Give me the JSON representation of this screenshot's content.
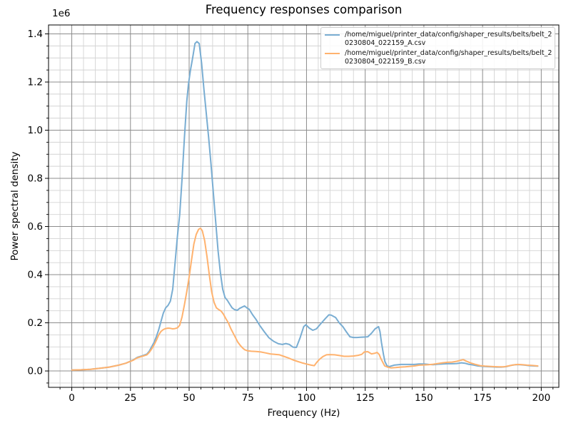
{
  "figure": {
    "background": "#ffffff"
  },
  "chart_data": {
    "type": "line",
    "title": "Frequency responses comparison",
    "xlabel": "Frequency (Hz)",
    "ylabel": "Power spectral density",
    "y_offset_label": "1e6",
    "grid": {
      "major_color": "#8c8c8c",
      "minor_color": "#d3d3d3",
      "major_on": true,
      "minor_on": true
    },
    "axes_colors": {
      "spine": "#000000",
      "tick": "#000000",
      "tick_label": "#000000"
    },
    "x_axis": {
      "min": -9.9,
      "max": 207.5,
      "major_ticks": [
        0,
        25,
        50,
        75,
        100,
        125,
        150,
        175,
        200
      ],
      "major_tick_labels": [
        "0",
        "25",
        "50",
        "75",
        "100",
        "125",
        "150",
        "175",
        "200"
      ],
      "minor_tick_step": 5
    },
    "y_axis": {
      "min": -0.068,
      "max": 1.437,
      "unit_multiplier": 1000000,
      "major_ticks": [
        0.0,
        0.2,
        0.4,
        0.6,
        0.8,
        1.0,
        1.2,
        1.4
      ],
      "major_tick_labels": [
        "0.0",
        "0.2",
        "0.4",
        "0.6",
        "0.8",
        "1.0",
        "1.2",
        "1.4"
      ],
      "minor_tick_step": 0.05
    },
    "legend": {
      "position": "upper-right",
      "entries": [
        {
          "label": "/home/miguel/printer_data/config/shaper_results/belts/belt_20230804_022159_A.csv",
          "lines": [
            "/home/miguel/printer_data/config/shaper_results/belts/belt_2",
            "0230804_022159_A.csv"
          ],
          "color": "#79add2"
        },
        {
          "label": "/home/miguel/printer_data/config/shaper_results/belts/belt_20230804_022159_B.csv",
          "lines": [
            "/home/miguel/printer_data/config/shaper_results/belts/belt_2",
            "0230804_022159_B.csv"
          ],
          "color": "#ffb26e"
        }
      ]
    },
    "series": [
      {
        "name": "belt_20230804_022159_A.csv",
        "color": "#79add2",
        "peak": {
          "frequency_hz": 53.3,
          "psd": 1368000
        },
        "points": [
          [
            0,
            0.004
          ],
          [
            4,
            0.005
          ],
          [
            8,
            0.007
          ],
          [
            12,
            0.011
          ],
          [
            16,
            0.016
          ],
          [
            20,
            0.024
          ],
          [
            23,
            0.032
          ],
          [
            26,
            0.045
          ],
          [
            28,
            0.057
          ],
          [
            30,
            0.063
          ],
          [
            32,
            0.07
          ],
          [
            33,
            0.082
          ],
          [
            34,
            0.1
          ],
          [
            35,
            0.118
          ],
          [
            36,
            0.142
          ],
          [
            37,
            0.17
          ],
          [
            38,
            0.205
          ],
          [
            39,
            0.24
          ],
          [
            40,
            0.262
          ],
          [
            41,
            0.272
          ],
          [
            42,
            0.29
          ],
          [
            43,
            0.34
          ],
          [
            44,
            0.45
          ],
          [
            45,
            0.56
          ],
          [
            46,
            0.65
          ],
          [
            47,
            0.8
          ],
          [
            48,
            0.97
          ],
          [
            49,
            1.12
          ],
          [
            49.7,
            1.19
          ],
          [
            50.5,
            1.245
          ],
          [
            51.5,
            1.3
          ],
          [
            52.5,
            1.36
          ],
          [
            53.3,
            1.368
          ],
          [
            54.3,
            1.36
          ],
          [
            55.3,
            1.28
          ],
          [
            56.3,
            1.17
          ],
          [
            57.3,
            1.07
          ],
          [
            58.3,
            0.97
          ],
          [
            59.3,
            0.86
          ],
          [
            60.3,
            0.74
          ],
          [
            61.3,
            0.62
          ],
          [
            62.3,
            0.5
          ],
          [
            63.3,
            0.41
          ],
          [
            64.3,
            0.34
          ],
          [
            65.3,
            0.305
          ],
          [
            66.3,
            0.293
          ],
          [
            67.3,
            0.277
          ],
          [
            68.3,
            0.262
          ],
          [
            69.3,
            0.255
          ],
          [
            70.5,
            0.252
          ],
          [
            71.5,
            0.26
          ],
          [
            72.7,
            0.266
          ],
          [
            73.6,
            0.27
          ],
          [
            74.6,
            0.262
          ],
          [
            75.6,
            0.256
          ],
          [
            77,
            0.234
          ],
          [
            78.5,
            0.214
          ],
          [
            80,
            0.19
          ],
          [
            82,
            0.163
          ],
          [
            84,
            0.138
          ],
          [
            86,
            0.123
          ],
          [
            88,
            0.113
          ],
          [
            89.7,
            0.11
          ],
          [
            91.2,
            0.114
          ],
          [
            92.7,
            0.11
          ],
          [
            94.2,
            0.099
          ],
          [
            95.7,
            0.098
          ],
          [
            97.3,
            0.139
          ],
          [
            98.8,
            0.184
          ],
          [
            99.7,
            0.192
          ],
          [
            101.2,
            0.178
          ],
          [
            102.7,
            0.169
          ],
          [
            104.2,
            0.175
          ],
          [
            105.8,
            0.193
          ],
          [
            107.9,
            0.216
          ],
          [
            109.5,
            0.233
          ],
          [
            110.5,
            0.232
          ],
          [
            112.4,
            0.222
          ],
          [
            113.9,
            0.2
          ],
          [
            115.5,
            0.184
          ],
          [
            117,
            0.162
          ],
          [
            118.5,
            0.142
          ],
          [
            120,
            0.139
          ],
          [
            121.5,
            0.139
          ],
          [
            123,
            0.14
          ],
          [
            124.5,
            0.141
          ],
          [
            126.1,
            0.142
          ],
          [
            127.7,
            0.157
          ],
          [
            129.2,
            0.175
          ],
          [
            130.7,
            0.184
          ],
          [
            131.3,
            0.163
          ],
          [
            131.9,
            0.119
          ],
          [
            132.8,
            0.068
          ],
          [
            133.4,
            0.039
          ],
          [
            134.3,
            0.021
          ],
          [
            135.2,
            0.018
          ],
          [
            137.3,
            0.024
          ],
          [
            140.3,
            0.027
          ],
          [
            143.4,
            0.027
          ],
          [
            146,
            0.027
          ],
          [
            148,
            0.029
          ],
          [
            150,
            0.029
          ],
          [
            152,
            0.027
          ],
          [
            154,
            0.026
          ],
          [
            156,
            0.028
          ],
          [
            158,
            0.029
          ],
          [
            160,
            0.03
          ],
          [
            162,
            0.03
          ],
          [
            164,
            0.031
          ],
          [
            166,
            0.034
          ],
          [
            167.5,
            0.032
          ],
          [
            169,
            0.028
          ],
          [
            171,
            0.025
          ],
          [
            173,
            0.021
          ],
          [
            175,
            0.019
          ],
          [
            177,
            0.018
          ],
          [
            179,
            0.017
          ],
          [
            181,
            0.016
          ],
          [
            183,
            0.016
          ],
          [
            185,
            0.018
          ],
          [
            187,
            0.023
          ],
          [
            189,
            0.026
          ],
          [
            191,
            0.026
          ],
          [
            193,
            0.024
          ],
          [
            195,
            0.022
          ],
          [
            197,
            0.021
          ],
          [
            198.5,
            0.02
          ]
        ]
      },
      {
        "name": "belt_20230804_022159_B.csv",
        "color": "#ffb26e",
        "peak": {
          "frequency_hz": 54.8,
          "psd": 593000
        },
        "points": [
          [
            0,
            0.004
          ],
          [
            4,
            0.005
          ],
          [
            8,
            0.007
          ],
          [
            12,
            0.011
          ],
          [
            16,
            0.016
          ],
          [
            20,
            0.024
          ],
          [
            23,
            0.032
          ],
          [
            26,
            0.044
          ],
          [
            28,
            0.055
          ],
          [
            30,
            0.061
          ],
          [
            32,
            0.067
          ],
          [
            33,
            0.077
          ],
          [
            34,
            0.091
          ],
          [
            35,
            0.107
          ],
          [
            36,
            0.127
          ],
          [
            37,
            0.149
          ],
          [
            38,
            0.164
          ],
          [
            39,
            0.172
          ],
          [
            40,
            0.176
          ],
          [
            41,
            0.178
          ],
          [
            42,
            0.177
          ],
          [
            43,
            0.175
          ],
          [
            44,
            0.176
          ],
          [
            45,
            0.179
          ],
          [
            46,
            0.19
          ],
          [
            47,
            0.225
          ],
          [
            48,
            0.275
          ],
          [
            49,
            0.33
          ],
          [
            50,
            0.39
          ],
          [
            51,
            0.46
          ],
          [
            52,
            0.527
          ],
          [
            53,
            0.567
          ],
          [
            54,
            0.588
          ],
          [
            54.8,
            0.593
          ],
          [
            55.6,
            0.583
          ],
          [
            56.6,
            0.542
          ],
          [
            57.6,
            0.475
          ],
          [
            58.6,
            0.398
          ],
          [
            59.6,
            0.328
          ],
          [
            60.6,
            0.285
          ],
          [
            61.6,
            0.262
          ],
          [
            62.6,
            0.255
          ],
          [
            63.6,
            0.249
          ],
          [
            64.6,
            0.236
          ],
          [
            65.6,
            0.218
          ],
          [
            66.7,
            0.2
          ],
          [
            67.7,
            0.177
          ],
          [
            68.7,
            0.158
          ],
          [
            69.7,
            0.139
          ],
          [
            70.7,
            0.12
          ],
          [
            71.7,
            0.107
          ],
          [
            72.7,
            0.096
          ],
          [
            73.7,
            0.088
          ],
          [
            74.8,
            0.084
          ],
          [
            76.5,
            0.082
          ],
          [
            78.5,
            0.081
          ],
          [
            80.5,
            0.079
          ],
          [
            82.5,
            0.075
          ],
          [
            84.5,
            0.071
          ],
          [
            86.5,
            0.069
          ],
          [
            88.5,
            0.067
          ],
          [
            90.3,
            0.061
          ],
          [
            92.3,
            0.054
          ],
          [
            94.2,
            0.046
          ],
          [
            96,
            0.04
          ],
          [
            98,
            0.034
          ],
          [
            100,
            0.029
          ],
          [
            102,
            0.024
          ],
          [
            103.3,
            0.022
          ],
          [
            104.3,
            0.035
          ],
          [
            105.5,
            0.048
          ],
          [
            107,
            0.06
          ],
          [
            108.5,
            0.067
          ],
          [
            110,
            0.068
          ],
          [
            112,
            0.067
          ],
          [
            114,
            0.064
          ],
          [
            116,
            0.061
          ],
          [
            118,
            0.061
          ],
          [
            120,
            0.062
          ],
          [
            122,
            0.065
          ],
          [
            123.5,
            0.069
          ],
          [
            124.6,
            0.079
          ],
          [
            126.1,
            0.08
          ],
          [
            127.7,
            0.071
          ],
          [
            129.2,
            0.074
          ],
          [
            130.1,
            0.077
          ],
          [
            131,
            0.068
          ],
          [
            131.6,
            0.053
          ],
          [
            132.5,
            0.036
          ],
          [
            133.3,
            0.021
          ],
          [
            134.5,
            0.016
          ],
          [
            136,
            0.013
          ],
          [
            138,
            0.014
          ],
          [
            140,
            0.016
          ],
          [
            142,
            0.017
          ],
          [
            144,
            0.019
          ],
          [
            146,
            0.021
          ],
          [
            148,
            0.024
          ],
          [
            150,
            0.025
          ],
          [
            152,
            0.026
          ],
          [
            154,
            0.028
          ],
          [
            156,
            0.031
          ],
          [
            158,
            0.034
          ],
          [
            160,
            0.036
          ],
          [
            162,
            0.037
          ],
          [
            164,
            0.04
          ],
          [
            165.5,
            0.044
          ],
          [
            166.8,
            0.047
          ],
          [
            168,
            0.041
          ],
          [
            170,
            0.033
          ],
          [
            172,
            0.027
          ],
          [
            174,
            0.022
          ],
          [
            176,
            0.02
          ],
          [
            178,
            0.019
          ],
          [
            180,
            0.018
          ],
          [
            182,
            0.017
          ],
          [
            184,
            0.017
          ],
          [
            186,
            0.021
          ],
          [
            188,
            0.025
          ],
          [
            190,
            0.027
          ],
          [
            192,
            0.026
          ],
          [
            194,
            0.024
          ],
          [
            196,
            0.023
          ],
          [
            198.5,
            0.021
          ]
        ]
      }
    ]
  }
}
